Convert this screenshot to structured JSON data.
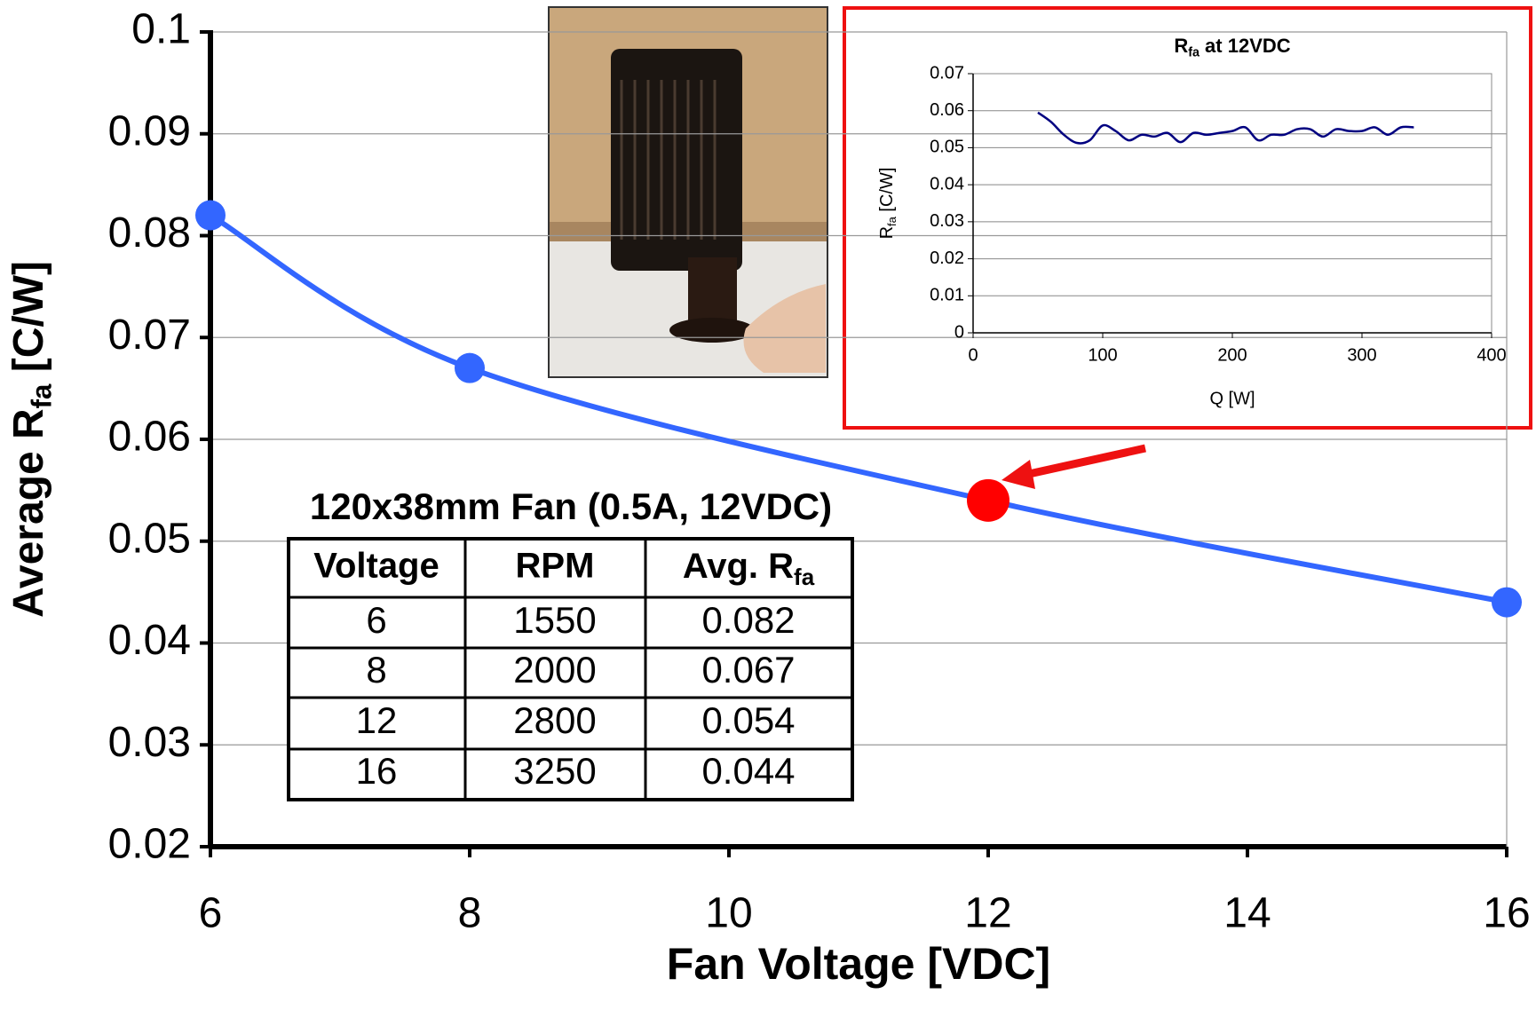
{
  "chart_data": [
    {
      "type": "line",
      "xlabel": "Fan Voltage [VDC]",
      "ylabel": [
        "Average R",
        "fa",
        " [C/W]"
      ],
      "x": [
        6,
        8,
        12,
        16
      ],
      "values": [
        0.082,
        0.067,
        0.054,
        0.044
      ],
      "color": "#3366ff",
      "point_colors": [
        "#3366ff",
        "#3366ff",
        "#ff0000",
        "#3366ff"
      ],
      "xlim": [
        6,
        16
      ],
      "ylim": [
        0.02,
        0.1
      ],
      "xticks": [
        6,
        8,
        10,
        12,
        14,
        16
      ],
      "yticks": [
        0.02,
        0.03,
        0.04,
        0.05,
        0.06,
        0.07,
        0.08,
        0.09,
        0.1
      ],
      "grid": true
    },
    {
      "type": "line",
      "title": [
        "R",
        "fa",
        " at 12VDC"
      ],
      "xlabel": "Q [W]",
      "ylabel": [
        "R",
        "fa",
        " [C/W]"
      ],
      "x": [
        50,
        60,
        70,
        80,
        90,
        100,
        110,
        120,
        130,
        140,
        150,
        160,
        170,
        180,
        190,
        200,
        210,
        220,
        230,
        240,
        250,
        260,
        270,
        280,
        290,
        300,
        310,
        320,
        330,
        340
      ],
      "values": [
        0.0595,
        0.057,
        0.0535,
        0.0513,
        0.052,
        0.056,
        0.0545,
        0.052,
        0.0535,
        0.053,
        0.054,
        0.0515,
        0.054,
        0.0535,
        0.054,
        0.0545,
        0.0555,
        0.052,
        0.0535,
        0.0535,
        0.055,
        0.055,
        0.053,
        0.055,
        0.0545,
        0.0545,
        0.0555,
        0.0535,
        0.0555,
        0.0555
      ],
      "color": "#000080",
      "xlim": [
        0,
        400
      ],
      "ylim": [
        0,
        0.07
      ],
      "xticks": [
        0,
        100,
        200,
        300,
        400
      ],
      "yticks": [
        0,
        0.01,
        0.02,
        0.03,
        0.04,
        0.05,
        0.06,
        0.07
      ],
      "grid": true
    }
  ],
  "table": {
    "title": "120x38mm Fan (0.5A, 12VDC)",
    "header": [
      "Voltage",
      "RPM",
      [
        "Avg. R",
        "fa"
      ]
    ],
    "rows": [
      [
        "6",
        "1550",
        "0.082"
      ],
      [
        "8",
        "2000",
        "0.067"
      ],
      [
        "12",
        "2800",
        "0.054"
      ],
      [
        "16",
        "3250",
        "0.044"
      ]
    ]
  }
}
